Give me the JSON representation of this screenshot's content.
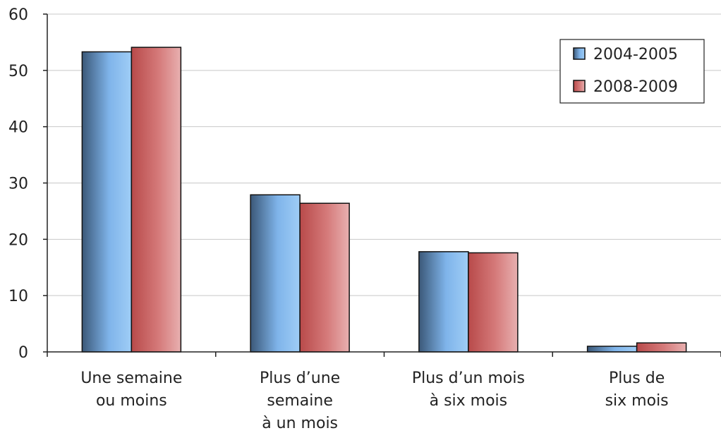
{
  "chart_data": {
    "type": "bar",
    "title": "",
    "xlabel": "",
    "ylabel": "",
    "categories": [
      [
        "Une semaine",
        "ou moins"
      ],
      [
        "Plus d’une",
        "semaine",
        "à un mois"
      ],
      [
        "Plus d’un mois",
        "à six mois"
      ],
      [
        "Plus de",
        "six mois"
      ]
    ],
    "series": [
      {
        "name": "2004-2005",
        "values": [
          53.3,
          27.9,
          17.8,
          1.0
        ],
        "color": "#7aaee0"
      },
      {
        "name": "2008-2009",
        "values": [
          54.1,
          26.4,
          17.6,
          1.6
        ],
        "color": "#d46060"
      }
    ],
    "ylim": [
      0,
      60
    ],
    "yticks": [
      0,
      10,
      20,
      30,
      40,
      50,
      60
    ],
    "grid": true,
    "legend_position": "top-right"
  }
}
